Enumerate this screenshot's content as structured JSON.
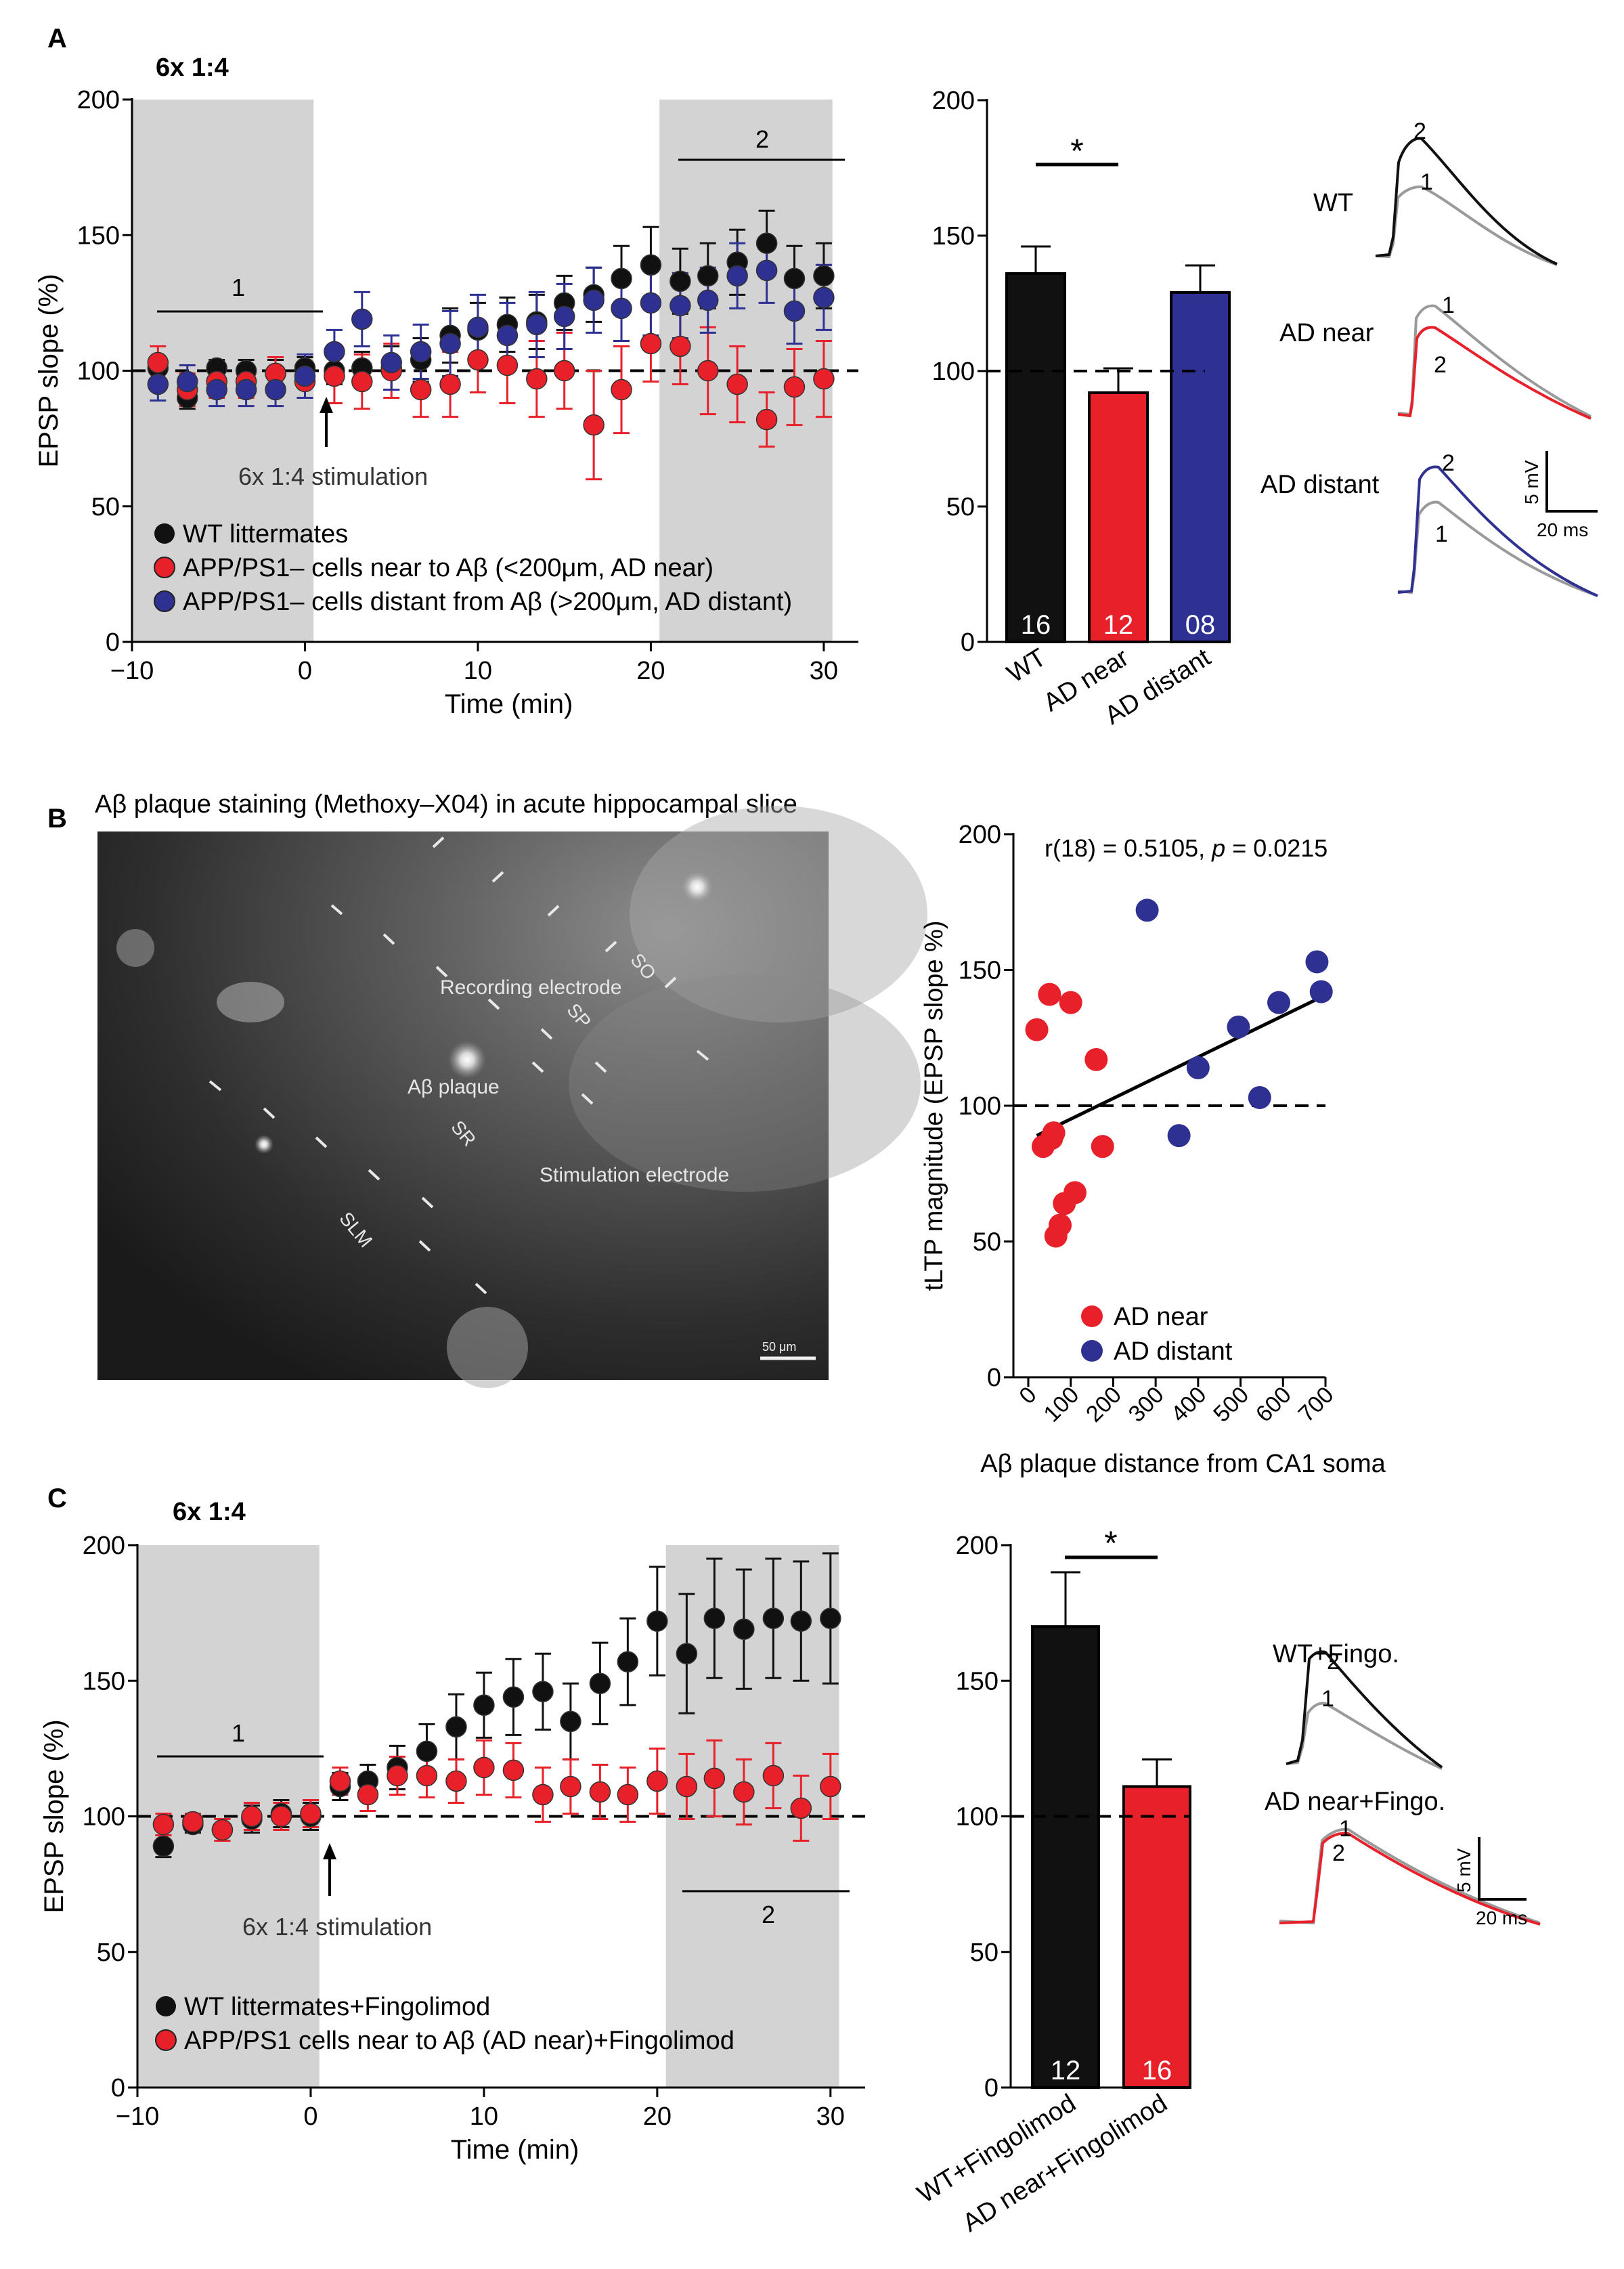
{
  "panels": {
    "a": "A",
    "b": "B",
    "c": "C"
  },
  "colors": {
    "wt": "#111111",
    "near": "#e8202a",
    "distant": "#2e3192",
    "shade": "#d3d3d3",
    "trace_gray": "#9a9a9a"
  },
  "panelA": {
    "protocol_label": "6x 1:4",
    "period1_label": "1",
    "period2_label": "2",
    "arrow_label": "6x 1:4 stimulation",
    "legend": [
      "WT littermates",
      "APP/PS1– cells near to Aβ (<200μm, AD near)",
      "APP/PS1– cells distant from Aβ (>200μm, AD distant)"
    ],
    "bar_sig": "*",
    "traces": {
      "wt": "WT",
      "near": "AD near",
      "distant": "AD distant",
      "n1": "1",
      "n2": "2",
      "scale_mv": "5 mV",
      "scale_ms": "20 ms"
    }
  },
  "panelB": {
    "image_title": "Aβ plaque staining (Methoxy–X04) in acute hippocampal slice",
    "labels": {
      "so": "SO",
      "sp": "SP",
      "sr": "SR",
      "slm": "SLM",
      "recording": "Recording electrode",
      "stimulation": "Stimulation electrode",
      "plaque": "Aβ plaque",
      "scalebar": "50 μm"
    },
    "stat_prefix": "r(18) = 0.5105, ",
    "stat_p": "p",
    "stat_value": " = 0.0215",
    "legend": [
      "AD near",
      "AD distant"
    ]
  },
  "panelC": {
    "protocol_label": "6x 1:4",
    "period1_label": "1",
    "period2_label": "2",
    "arrow_label": "6x 1:4 stimulation",
    "legend": [
      "WT littermates+Fingolimod",
      "APP/PS1 cells near to Aβ (AD near)+Fingolimod"
    ],
    "bar_sig": "*",
    "traces": {
      "wt": "WT+Fingo.",
      "near": "AD near+Fingo.",
      "n1": "1",
      "n2": "2",
      "scale_mv": "5 mV",
      "scale_ms": "20 ms"
    }
  },
  "chart_data": [
    {
      "id": "A_time",
      "type": "scatter",
      "xlabel": "Time (min)",
      "ylabel": "EPSP slope (%)",
      "xlim": [
        -10,
        32
      ],
      "ylim": [
        0,
        200
      ],
      "xticks": [
        -10,
        0,
        10,
        20,
        30
      ],
      "yticks": [
        0,
        50,
        100,
        150,
        200
      ],
      "shaded": [
        [
          -10,
          0.5
        ],
        [
          20.5,
          30.5
        ]
      ],
      "series": [
        {
          "name": "WT littermates",
          "color": "#111111",
          "x": [
            -8.5,
            -6.8,
            -5.1,
            -3.4,
            -1.7,
            0,
            1.7,
            3.3,
            5,
            6.7,
            8.4,
            10,
            11.7,
            13.4,
            15,
            16.7,
            18.3,
            20,
            21.7,
            23.3,
            25,
            26.7,
            28.3,
            30
          ],
          "y": [
            101,
            90,
            101,
            100,
            99,
            101,
            100,
            101,
            101,
            104,
            113,
            115,
            117,
            118,
            125,
            128,
            134,
            139,
            133,
            135,
            140,
            147,
            134,
            135
          ],
          "err": [
            4,
            4,
            3,
            4,
            5,
            4,
            5,
            6,
            8,
            8,
            10,
            10,
            10,
            10,
            10,
            10,
            12,
            14,
            12,
            12,
            12,
            12,
            12,
            12
          ]
        },
        {
          "name": "AD near",
          "color": "#e8202a",
          "x": [
            -8.5,
            -6.8,
            -5.1,
            -3.4,
            -1.7,
            0,
            1.7,
            3.3,
            5,
            6.7,
            8.4,
            10,
            11.7,
            13.4,
            15,
            16.7,
            18.3,
            20,
            21.7,
            23.3,
            25,
            26.7,
            28.3,
            30
          ],
          "y": [
            103,
            93,
            96,
            96,
            99,
            96,
            98,
            96,
            100,
            93,
            95,
            104,
            102,
            97,
            100,
            80,
            93,
            110,
            109,
            100,
            95,
            82,
            94,
            97
          ],
          "err": [
            6,
            6,
            6,
            6,
            6,
            6,
            10,
            10,
            10,
            10,
            12,
            12,
            14,
            14,
            14,
            20,
            16,
            14,
            14,
            16,
            14,
            10,
            14,
            14
          ]
        },
        {
          "name": "AD distant",
          "color": "#2e3192",
          "x": [
            -8.5,
            -6.8,
            -5.1,
            -3.4,
            -1.7,
            0,
            1.7,
            3.3,
            5,
            6.7,
            8.4,
            10,
            11.7,
            13.4,
            15,
            16.7,
            18.3,
            20,
            21.7,
            23.3,
            25,
            26.7,
            28.3,
            30
          ],
          "y": [
            95,
            96,
            93,
            93,
            93,
            98,
            107,
            119,
            103,
            107,
            110,
            116,
            113,
            117,
            120,
            126,
            123,
            125,
            124,
            126,
            135,
            137,
            122,
            127
          ],
          "err": [
            6,
            6,
            6,
            6,
            6,
            8,
            8,
            10,
            10,
            10,
            12,
            12,
            12,
            12,
            12,
            12,
            12,
            12,
            12,
            12,
            12,
            12,
            12,
            12
          ]
        }
      ]
    },
    {
      "id": "A_bar",
      "type": "bar",
      "categories": [
        "WT",
        "AD near",
        "AD distant"
      ],
      "values": [
        136,
        92,
        129
      ],
      "err": [
        10,
        9,
        10
      ],
      "n": [
        "16",
        "12",
        "08"
      ],
      "colors": [
        "#111111",
        "#e8202a",
        "#2e3192"
      ],
      "ylim": [
        0,
        200
      ],
      "yticks": [
        0,
        50,
        100,
        150,
        200
      ]
    },
    {
      "id": "B_scatter",
      "type": "scatter",
      "xlabel": "Aβ plaque distance from CA1 soma",
      "ylabel": "tLTP magnitude (EPSP slope %)",
      "xlim": [
        0,
        700
      ],
      "ylim": [
        0,
        200
      ],
      "xticks": [
        0,
        100,
        200,
        300,
        400,
        500,
        600,
        700
      ],
      "yticks": [
        0,
        50,
        100,
        150,
        200
      ],
      "series": [
        {
          "name": "AD near",
          "color": "#e8202a",
          "x": [
            20,
            35,
            50,
            55,
            60,
            65,
            75,
            85,
            100,
            110,
            160,
            175
          ],
          "y": [
            128,
            85,
            141,
            88,
            90,
            52,
            56,
            64,
            138,
            68,
            117,
            85
          ]
        },
        {
          "name": "AD distant",
          "color": "#2e3192",
          "x": [
            280,
            355,
            400,
            495,
            545,
            590,
            680,
            690
          ],
          "y": [
            172,
            89,
            114,
            129,
            103,
            138,
            153,
            142
          ]
        }
      ],
      "fit": {
        "x": [
          20,
          690
        ],
        "y": [
          89,
          140
        ]
      }
    },
    {
      "id": "C_time",
      "type": "scatter",
      "xlabel": "Time (min)",
      "ylabel": "EPSP slope (%)",
      "xlim": [
        -10,
        32
      ],
      "ylim": [
        0,
        200
      ],
      "xticks": [
        -10,
        0,
        10,
        20,
        30
      ],
      "yticks": [
        0,
        50,
        100,
        150,
        200
      ],
      "shaded": [
        [
          -10,
          0.5
        ],
        [
          20.5,
          30.5
        ]
      ],
      "series": [
        {
          "name": "WT littermates+Fingolimod",
          "color": "#111111",
          "x": [
            -8.5,
            -6.8,
            -5.1,
            -3.4,
            -1.7,
            0,
            1.7,
            3.3,
            5,
            6.7,
            8.4,
            10,
            11.7,
            13.4,
            15,
            16.7,
            18.3,
            20,
            21.7,
            23.3,
            25,
            26.7,
            28.3,
            30
          ],
          "y": [
            89,
            97,
            95,
            99,
            101,
            100,
            111,
            113,
            118,
            124,
            133,
            141,
            144,
            146,
            135,
            149,
            157,
            172,
            160,
            173,
            169,
            173,
            172,
            173
          ],
          "err": [
            4,
            3,
            4,
            5,
            5,
            5,
            5,
            6,
            8,
            10,
            12,
            12,
            14,
            14,
            14,
            15,
            16,
            20,
            22,
            22,
            22,
            22,
            22,
            24
          ]
        },
        {
          "name": "AD near+Fingolimod",
          "color": "#e8202a",
          "x": [
            -8.5,
            -6.8,
            -5.1,
            -3.4,
            -1.7,
            0,
            1.7,
            3.3,
            5,
            6.7,
            8.4,
            10,
            11.7,
            13.4,
            15,
            16.7,
            18.3,
            20,
            21.7,
            23.3,
            25,
            26.7,
            28.3,
            30
          ],
          "y": [
            97,
            98,
            95,
            100,
            100,
            101,
            113,
            108,
            115,
            115,
            113,
            118,
            117,
            108,
            111,
            109,
            108,
            113,
            111,
            114,
            109,
            115,
            103,
            111
          ],
          "err": [
            4,
            3,
            4,
            5,
            5,
            5,
            5,
            6,
            7,
            8,
            8,
            10,
            10,
            10,
            10,
            10,
            10,
            12,
            12,
            14,
            12,
            12,
            12,
            12
          ]
        }
      ]
    },
    {
      "id": "C_bar",
      "type": "bar",
      "categories": [
        "WT+Fingolimod",
        "AD near+Fingolimod"
      ],
      "values": [
        170,
        111
      ],
      "err": [
        20,
        10
      ],
      "n": [
        "12",
        "16"
      ],
      "colors": [
        "#111111",
        "#e8202a"
      ],
      "ylim": [
        0,
        200
      ],
      "yticks": [
        0,
        50,
        100,
        150,
        200
      ]
    }
  ]
}
